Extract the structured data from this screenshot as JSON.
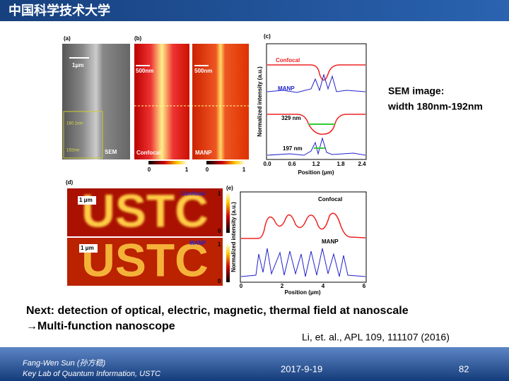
{
  "header": {
    "title": "中国科学技术大学"
  },
  "figure": {
    "a": {
      "label": "(a)",
      "scale": "1μm",
      "inset1": "180.1nm",
      "inset2": "192nm",
      "tag": "SEM"
    },
    "b": {
      "label": "(b)",
      "scale1": "500nm",
      "scale2": "500nm",
      "tag1": "Confocal",
      "tag2": "MANP",
      "cbar": [
        "0",
        "1",
        "0",
        "1"
      ]
    },
    "c": {
      "label": "(c)",
      "ylabel": "Normalized intensity (a.u.)",
      "xlabel": "Position (μm)",
      "xticks": [
        "0.0",
        "0.6",
        "1.2",
        "1.8",
        "2.4"
      ],
      "curve1": "Confocal",
      "curve2": "MANP",
      "width1": "329 nm",
      "width2": "197 nm"
    },
    "d": {
      "label": "(d)",
      "image_text": "USTC",
      "scale1": "1 μm",
      "scale2": "1 μm",
      "tag1": "Confocal",
      "tag2": "MANP",
      "cbar": [
        "1",
        "0",
        "1",
        "0"
      ]
    },
    "e": {
      "label": "(e)",
      "ylabel": "Normalized intensity (a.u.)",
      "xlabel": "Position (μm)",
      "xticks": [
        "0",
        "2",
        "4",
        "6"
      ],
      "curve1": "Confocal",
      "curve2": "MANP"
    }
  },
  "note": {
    "line1": "SEM image:",
    "line2": "width 180nm-192nm"
  },
  "body": {
    "line1": "Next: detection of optical, electric, magnetic, thermal field at nanoscale",
    "line2": "→Multi-function nanoscope",
    "citation": "Li, et. al., APL  109, 111107 (2016)"
  },
  "footer": {
    "author": "Fang-Wen Sun (孙方稳)",
    "affiliation": "Key Lab of Quantum Information, USTC",
    "date": "2017-9-19",
    "page": "82"
  }
}
